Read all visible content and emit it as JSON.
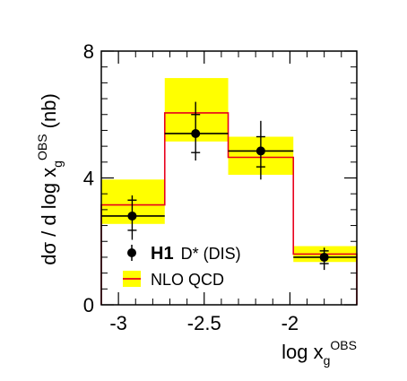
{
  "chart_data": {
    "type": "step",
    "bins": [
      {
        "lo": -3.1,
        "hi": -2.73
      },
      {
        "lo": -2.73,
        "hi": -2.36
      },
      {
        "lo": -2.36,
        "hi": -1.98
      },
      {
        "lo": -1.98,
        "hi": -1.61
      }
    ],
    "series": [
      {
        "name": "NLO QCD",
        "type": "step",
        "color": "#e8001c",
        "band_color": "#ffff00",
        "values": [
          3.15,
          6.05,
          4.65,
          1.6
        ],
        "band_low": [
          2.55,
          5.15,
          4.1,
          1.35
        ],
        "band_high": [
          3.95,
          7.15,
          5.3,
          1.85
        ]
      },
      {
        "name": "H1",
        "label_suffix": "D* (DIS)",
        "type": "points",
        "color": "#000000",
        "x": [
          -2.92,
          -2.55,
          -2.17,
          -1.8
        ],
        "y": [
          2.8,
          5.4,
          4.85,
          1.5
        ],
        "xerr_lo": [
          -3.1,
          -2.73,
          -2.36,
          -1.98
        ],
        "xerr_hi": [
          -2.73,
          -2.36,
          -1.98,
          -1.61
        ],
        "yerr_stat_lo": [
          2.35,
          4.8,
          4.35,
          1.3
        ],
        "yerr_stat_hi": [
          3.3,
          6.0,
          5.3,
          1.7
        ],
        "yerr_tot_lo": [
          2.05,
          4.55,
          3.95,
          1.1
        ],
        "yerr_tot_hi": [
          3.45,
          6.4,
          5.8,
          1.8
        ]
      }
    ],
    "xlim": [
      -3.1,
      -1.61
    ],
    "ylim": [
      0,
      8
    ],
    "xticks": [
      {
        "value": -3,
        "label": "-3"
      },
      {
        "value": -2.5,
        "label": "-2.5"
      },
      {
        "value": -2,
        "label": "-2"
      }
    ],
    "yticks": [
      {
        "value": 0,
        "label": "0"
      },
      {
        "value": 4,
        "label": "4"
      },
      {
        "value": 8,
        "label": "8"
      }
    ],
    "xlabel": {
      "main": "log x",
      "sub": "g",
      "sup": "OBS"
    },
    "ylabel": {
      "prefix": "dσ / d log x",
      "sub": "g",
      "sup": "OBS",
      "suffix": "  (nb)"
    },
    "legend": {
      "placement": "bottom-left",
      "h1_label": "H1",
      "h1_suffix": "D* (DIS)",
      "nlo_label": "NLO QCD"
    },
    "grid": false
  }
}
